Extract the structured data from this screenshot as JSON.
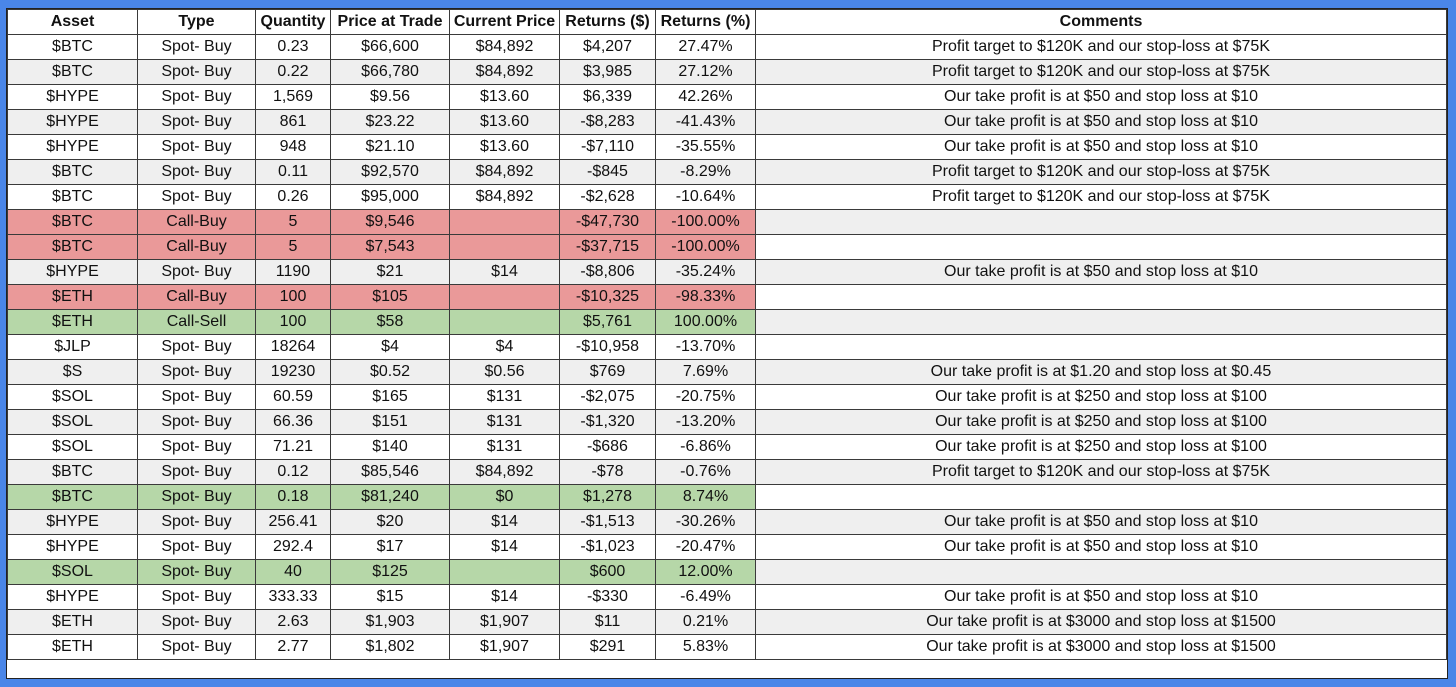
{
  "headers": [
    "Asset",
    "Type",
    "Quantity",
    "Price at Trade",
    "Current Price",
    "Returns ($)",
    "Returns (%)",
    "Comments"
  ],
  "colors": {
    "background": "#4a86e8",
    "highlight_red": "#ea9999",
    "highlight_green": "#b6d7a8",
    "stripe": "#efefef"
  },
  "rows": [
    {
      "cells": [
        "$BTC",
        "Spot- Buy",
        "0.23",
        "$66,600",
        "$84,892",
        "$4,207",
        "27.47%",
        "Profit target to $120K and our stop-loss at $75K"
      ],
      "highlight": ""
    },
    {
      "cells": [
        "$BTC",
        "Spot- Buy",
        "0.22",
        "$66,780",
        "$84,892",
        "$3,985",
        "27.12%",
        "Profit target to $120K and our stop-loss at $75K"
      ],
      "highlight": ""
    },
    {
      "cells": [
        "$HYPE",
        "Spot- Buy",
        "1,569",
        "$9.56",
        "$13.60",
        "$6,339",
        "42.26%",
        "Our take profit is at $50 and stop loss at $10"
      ],
      "highlight": ""
    },
    {
      "cells": [
        "$HYPE",
        "Spot- Buy",
        "861",
        "$23.22",
        "$13.60",
        "-$8,283",
        "-41.43%",
        "Our take profit is at $50 and stop loss at $10"
      ],
      "highlight": ""
    },
    {
      "cells": [
        "$HYPE",
        "Spot- Buy",
        "948",
        "$21.10",
        "$13.60",
        "-$7,110",
        "-35.55%",
        "Our take profit is at $50 and stop loss at $10"
      ],
      "highlight": ""
    },
    {
      "cells": [
        "$BTC",
        "Spot- Buy",
        "0.11",
        "$92,570",
        "$84,892",
        "-$845",
        "-8.29%",
        "Profit target to $120K and our stop-loss at $75K"
      ],
      "highlight": ""
    },
    {
      "cells": [
        "$BTC",
        "Spot- Buy",
        "0.26",
        "$95,000",
        "$84,892",
        "-$2,628",
        "-10.64%",
        "Profit target to $120K and our stop-loss at $75K"
      ],
      "highlight": ""
    },
    {
      "cells": [
        "$BTC",
        "Call-Buy",
        "5",
        "$9,546",
        "",
        "-$47,730",
        "-100.00%",
        ""
      ],
      "highlight": "red"
    },
    {
      "cells": [
        "$BTC",
        "Call-Buy",
        "5",
        "$7,543",
        "",
        "-$37,715",
        "-100.00%",
        ""
      ],
      "highlight": "red"
    },
    {
      "cells": [
        "$HYPE",
        "Spot- Buy",
        "1190",
        "$21",
        "$14",
        "-$8,806",
        "-35.24%",
        "Our take profit is at $50 and stop loss at $10"
      ],
      "highlight": ""
    },
    {
      "cells": [
        "$ETH",
        "Call-Buy",
        "100",
        "$105",
        "",
        "-$10,325",
        "-98.33%",
        ""
      ],
      "highlight": "red"
    },
    {
      "cells": [
        "$ETH",
        "Call-Sell",
        "100",
        "$58",
        "",
        "$5,761",
        "100.00%",
        ""
      ],
      "highlight": "green"
    },
    {
      "cells": [
        "$JLP",
        "Spot- Buy",
        "18264",
        "$4",
        "$4",
        "-$10,958",
        "-13.70%",
        ""
      ],
      "highlight": ""
    },
    {
      "cells": [
        "$S",
        "Spot- Buy",
        "19230",
        "$0.52",
        "$0.56",
        "$769",
        "7.69%",
        "Our take profit is at $1.20 and stop loss at $0.45"
      ],
      "highlight": ""
    },
    {
      "cells": [
        "$SOL",
        "Spot- Buy",
        "60.59",
        "$165",
        "$131",
        "-$2,075",
        "-20.75%",
        "Our take profit is at $250 and stop loss at $100"
      ],
      "highlight": ""
    },
    {
      "cells": [
        "$SOL",
        "Spot- Buy",
        "66.36",
        "$151",
        "$131",
        "-$1,320",
        "-13.20%",
        "Our take profit is at $250 and stop loss at $100"
      ],
      "highlight": ""
    },
    {
      "cells": [
        "$SOL",
        "Spot- Buy",
        "71.21",
        "$140",
        "$131",
        "-$686",
        "-6.86%",
        "Our take profit is at $250 and stop loss at $100"
      ],
      "highlight": ""
    },
    {
      "cells": [
        "$BTC",
        "Spot- Buy",
        "0.12",
        "$85,546",
        "$84,892",
        "-$78",
        "-0.76%",
        "Profit target to $120K and our stop-loss at $75K"
      ],
      "highlight": ""
    },
    {
      "cells": [
        "$BTC",
        "Spot- Buy",
        "0.18",
        "$81,240",
        "$0",
        "$1,278",
        "8.74%",
        ""
      ],
      "highlight": "green"
    },
    {
      "cells": [
        "$HYPE",
        "Spot- Buy",
        "256.41",
        "$20",
        "$14",
        "-$1,513",
        "-30.26%",
        "Our take profit is at $50 and stop loss at $10"
      ],
      "highlight": ""
    },
    {
      "cells": [
        "$HYPE",
        "Spot- Buy",
        "292.4",
        "$17",
        "$14",
        "-$1,023",
        "-20.47%",
        "Our take profit is at $50 and stop loss at $10"
      ],
      "highlight": ""
    },
    {
      "cells": [
        "$SOL",
        "Spot- Buy",
        "40",
        "$125",
        "",
        "$600",
        "12.00%",
        ""
      ],
      "highlight": "green"
    },
    {
      "cells": [
        "$HYPE",
        "Spot- Buy",
        "333.33",
        "$15",
        "$14",
        "-$330",
        "-6.49%",
        "Our take profit is at $50 and stop loss at $10"
      ],
      "highlight": ""
    },
    {
      "cells": [
        "$ETH",
        "Spot- Buy",
        "2.63",
        "$1,903",
        "$1,907",
        "$11",
        "0.21%",
        "Our take profit is at $3000 and stop loss at $1500"
      ],
      "highlight": ""
    },
    {
      "cells": [
        "$ETH",
        "Spot- Buy",
        "2.77",
        "$1,802",
        "$1,907",
        "$291",
        "5.83%",
        "Our take profit is at $3000 and stop loss at $1500"
      ],
      "highlight": ""
    }
  ]
}
